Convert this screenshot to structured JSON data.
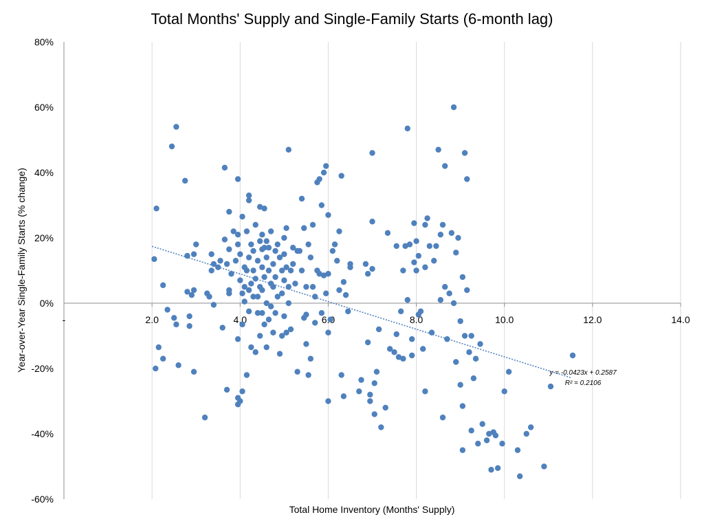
{
  "chart_data": {
    "type": "scatter",
    "title": "Total Months' Supply and Single-Family Starts (6-month lag)",
    "xlabel": "Total Home Inventory (Months' Supply)",
    "ylabel": "Year-over-Year Single-Family Starts (% change)",
    "xlim": [
      0,
      14
    ],
    "ylim": [
      -0.6,
      0.8
    ],
    "x_ticks": [
      {
        "value": 0,
        "label": "-"
      },
      {
        "value": 2,
        "label": "2.0"
      },
      {
        "value": 4,
        "label": "4.0"
      },
      {
        "value": 6,
        "label": "6.0"
      },
      {
        "value": 8,
        "label": "8.0"
      },
      {
        "value": 10,
        "label": "10.0"
      },
      {
        "value": 12,
        "label": "12.0"
      },
      {
        "value": 14,
        "label": "14.0"
      }
    ],
    "y_ticks": [
      {
        "value": 0.8,
        "label": "80%"
      },
      {
        "value": 0.6,
        "label": "60%"
      },
      {
        "value": 0.4,
        "label": "40%"
      },
      {
        "value": 0.2,
        "label": "20%"
      },
      {
        "value": 0,
        "label": "0%"
      },
      {
        "value": -0.2,
        "label": "-20%"
      },
      {
        "value": -0.4,
        "label": "-40%"
      },
      {
        "value": -0.6,
        "label": "-60%"
      }
    ],
    "grid": {
      "vertical": true,
      "horizontal": false
    },
    "legend": "none",
    "marker_color": "#4f81bd",
    "trendline": {
      "type": "linear",
      "slope": -0.0423,
      "intercept": 0.2587,
      "x_range": [
        2.0,
        11.5
      ],
      "equation_label": "y = -0.0423x + 0.2587",
      "r2_label": "R² = 0.2106",
      "color": "#4f81bd",
      "style": "dotted"
    },
    "points": [
      [
        2.1,
        0.29
      ],
      [
        2.05,
        0.135
      ],
      [
        2.08,
        -0.2
      ],
      [
        2.15,
        -0.135
      ],
      [
        2.25,
        0.055
      ],
      [
        2.25,
        -0.17
      ],
      [
        2.35,
        -0.02
      ],
      [
        2.45,
        0.48
      ],
      [
        2.5,
        -0.045
      ],
      [
        2.55,
        0.54
      ],
      [
        2.55,
        -0.065
      ],
      [
        2.6,
        -0.19
      ],
      [
        2.75,
        0.375
      ],
      [
        2.8,
        0.145
      ],
      [
        2.8,
        0.035
      ],
      [
        2.85,
        -0.04
      ],
      [
        2.85,
        -0.07
      ],
      [
        2.9,
        0.025
      ],
      [
        2.95,
        0.15
      ],
      [
        2.95,
        0.04
      ],
      [
        2.95,
        -0.21
      ],
      [
        3.0,
        0.18
      ],
      [
        3.25,
        0.03
      ],
      [
        3.3,
        0.02
      ],
      [
        3.35,
        0.15
      ],
      [
        3.35,
        0.1
      ],
      [
        3.4,
        0.12
      ],
      [
        3.4,
        -0.005
      ],
      [
        3.2,
        -0.35
      ],
      [
        3.5,
        0.11
      ],
      [
        3.55,
        0.13
      ],
      [
        3.6,
        -0.075
      ],
      [
        3.65,
        0.415
      ],
      [
        3.65,
        0.195
      ],
      [
        3.7,
        -0.265
      ],
      [
        3.7,
        0.12
      ],
      [
        3.75,
        0.03
      ],
      [
        3.75,
        0.28
      ],
      [
        3.75,
        0.165
      ],
      [
        3.75,
        0.04
      ],
      [
        3.8,
        0.09
      ],
      [
        3.85,
        0.22
      ],
      [
        3.9,
        0.13
      ],
      [
        3.95,
        0.38
      ],
      [
        3.95,
        0.21
      ],
      [
        3.95,
        0.18
      ],
      [
        3.95,
        -0.11
      ],
      [
        3.95,
        -0.29
      ],
      [
        3.95,
        -0.31
      ],
      [
        4.0,
        -0.3
      ],
      [
        4.0,
        0.07
      ],
      [
        4.0,
        0.15
      ],
      [
        4.05,
        0.265
      ],
      [
        4.05,
        0.03
      ],
      [
        4.05,
        -0.065
      ],
      [
        4.05,
        -0.27
      ],
      [
        4.1,
        0.05
      ],
      [
        4.1,
        0.11
      ],
      [
        4.1,
        0.005
      ],
      [
        4.15,
        0.22
      ],
      [
        4.15,
        0.1
      ],
      [
        4.15,
        -0.22
      ],
      [
        4.2,
        0.315
      ],
      [
        4.2,
        0.33
      ],
      [
        4.2,
        0.14
      ],
      [
        4.2,
        0.04
      ],
      [
        4.2,
        -0.025
      ],
      [
        4.25,
        0.18
      ],
      [
        4.25,
        0.06
      ],
      [
        4.25,
        -0.135
      ],
      [
        4.3,
        0.16
      ],
      [
        4.3,
        0.1
      ],
      [
        4.3,
        0.02
      ],
      [
        4.35,
        0.24
      ],
      [
        4.35,
        -0.15
      ],
      [
        4.35,
        0.075
      ],
      [
        4.4,
        0.13
      ],
      [
        4.4,
        0.02
      ],
      [
        4.4,
        -0.03
      ],
      [
        4.45,
        0.295
      ],
      [
        4.45,
        0.19
      ],
      [
        4.45,
        0.05
      ],
      [
        4.45,
        -0.1
      ],
      [
        4.5,
        0.21
      ],
      [
        4.5,
        0.165
      ],
      [
        4.5,
        0.11
      ],
      [
        4.5,
        0.04
      ],
      [
        4.5,
        -0.03
      ],
      [
        4.55,
        0.29
      ],
      [
        4.55,
        0.17
      ],
      [
        4.55,
        0.08
      ],
      [
        4.55,
        -0.065
      ],
      [
        4.6,
        0.19
      ],
      [
        4.6,
        0.14
      ],
      [
        4.6,
        0.0
      ],
      [
        4.6,
        -0.135
      ],
      [
        4.65,
        0.17
      ],
      [
        4.65,
        0.1
      ],
      [
        4.65,
        -0.05
      ],
      [
        4.7,
        0.22
      ],
      [
        4.7,
        0.06
      ],
      [
        4.7,
        -0.01
      ],
      [
        4.75,
        0.12
      ],
      [
        4.75,
        0.05
      ],
      [
        4.75,
        -0.09
      ],
      [
        4.8,
        0.16
      ],
      [
        4.8,
        0.08
      ],
      [
        4.8,
        -0.03
      ],
      [
        4.85,
        0.18
      ],
      [
        4.85,
        0.02
      ],
      [
        4.9,
        0.14
      ],
      [
        4.9,
        -0.155
      ],
      [
        4.95,
        0.1
      ],
      [
        4.95,
        0.03
      ],
      [
        4.95,
        -0.1
      ],
      [
        5.0,
        0.2
      ],
      [
        5.0,
        0.15
      ],
      [
        5.0,
        0.07
      ],
      [
        5.0,
        -0.04
      ],
      [
        5.05,
        0.23
      ],
      [
        5.05,
        0.11
      ],
      [
        5.05,
        -0.09
      ],
      [
        5.1,
        0.47
      ],
      [
        5.1,
        0.05
      ],
      [
        5.1,
        0.0
      ],
      [
        5.15,
        0.1
      ],
      [
        5.15,
        -0.08
      ],
      [
        5.2,
        0.17
      ],
      [
        5.2,
        0.12
      ],
      [
        5.25,
        0.06
      ],
      [
        5.3,
        0.16
      ],
      [
        5.3,
        -0.21
      ],
      [
        5.35,
        0.16
      ],
      [
        5.4,
        0.32
      ],
      [
        5.4,
        0.1
      ],
      [
        5.45,
        0.23
      ],
      [
        5.45,
        -0.045
      ],
      [
        5.5,
        0.05
      ],
      [
        5.5,
        -0.035
      ],
      [
        5.5,
        -0.125
      ],
      [
        5.55,
        0.18
      ],
      [
        5.55,
        -0.22
      ],
      [
        5.6,
        0.14
      ],
      [
        5.6,
        -0.17
      ],
      [
        5.65,
        0.24
      ],
      [
        5.65,
        0.05
      ],
      [
        5.7,
        0.02
      ],
      [
        5.7,
        -0.06
      ],
      [
        5.75,
        0.1
      ],
      [
        5.75,
        0.37
      ],
      [
        5.8,
        0.38
      ],
      [
        5.8,
        0.09
      ],
      [
        5.85,
        0.3
      ],
      [
        5.85,
        -0.03
      ],
      [
        5.9,
        0.4
      ],
      [
        5.9,
        0.085
      ],
      [
        5.95,
        0.42
      ],
      [
        5.95,
        0.03
      ],
      [
        6.0,
        0.27
      ],
      [
        6.0,
        0.09
      ],
      [
        6.0,
        -0.09
      ],
      [
        6.0,
        -0.3
      ],
      [
        6.05,
        -0.05
      ],
      [
        6.1,
        0.16
      ],
      [
        6.15,
        0.18
      ],
      [
        6.2,
        0.13
      ],
      [
        6.25,
        0.22
      ],
      [
        6.25,
        0.04
      ],
      [
        6.3,
        0.39
      ],
      [
        6.3,
        -0.22
      ],
      [
        6.35,
        0.065
      ],
      [
        6.35,
        -0.285
      ],
      [
        6.4,
        0.025
      ],
      [
        6.45,
        -0.025
      ],
      [
        6.5,
        0.11
      ],
      [
        6.5,
        0.12
      ],
      [
        6.7,
        -0.27
      ],
      [
        6.75,
        -0.235
      ],
      [
        6.85,
        0.12
      ],
      [
        6.9,
        0.09
      ],
      [
        6.9,
        -0.12
      ],
      [
        6.95,
        -0.3
      ],
      [
        6.95,
        -0.28
      ],
      [
        7.0,
        0.46
      ],
      [
        7.0,
        0.25
      ],
      [
        7.0,
        0.105
      ],
      [
        7.05,
        -0.245
      ],
      [
        7.05,
        -0.34
      ],
      [
        7.1,
        -0.21
      ],
      [
        7.15,
        -0.08
      ],
      [
        7.2,
        -0.38
      ],
      [
        7.3,
        -0.32
      ],
      [
        7.35,
        0.215
      ],
      [
        7.4,
        -0.14
      ],
      [
        7.5,
        -0.15
      ],
      [
        7.55,
        0.175
      ],
      [
        7.55,
        -0.095
      ],
      [
        7.6,
        -0.165
      ],
      [
        7.65,
        -0.025
      ],
      [
        7.7,
        -0.17
      ],
      [
        7.7,
        0.1
      ],
      [
        7.75,
        0.175
      ],
      [
        7.8,
        0.535
      ],
      [
        7.8,
        0.01
      ],
      [
        7.85,
        0.18
      ],
      [
        7.9,
        -0.16
      ],
      [
        7.9,
        -0.11
      ],
      [
        7.95,
        0.245
      ],
      [
        7.95,
        0.125
      ],
      [
        8.0,
        0.19
      ],
      [
        8.0,
        0.1
      ],
      [
        8.05,
        0.145
      ],
      [
        8.05,
        -0.035
      ],
      [
        8.1,
        -0.025
      ],
      [
        8.15,
        -0.14
      ],
      [
        8.2,
        0.24
      ],
      [
        8.2,
        0.11
      ],
      [
        8.2,
        -0.27
      ],
      [
        8.25,
        0.26
      ],
      [
        8.3,
        0.175
      ],
      [
        8.35,
        -0.09
      ],
      [
        8.4,
        0.13
      ],
      [
        8.45,
        0.175
      ],
      [
        8.5,
        0.47
      ],
      [
        8.55,
        0.21
      ],
      [
        8.55,
        0.01
      ],
      [
        8.6,
        0.24
      ],
      [
        8.6,
        -0.35
      ],
      [
        8.65,
        0.42
      ],
      [
        8.65,
        0.05
      ],
      [
        8.7,
        -0.11
      ],
      [
        8.75,
        0.03
      ],
      [
        8.8,
        0.215
      ],
      [
        8.85,
        0.6
      ],
      [
        8.85,
        0.0
      ],
      [
        8.9,
        0.155
      ],
      [
        8.9,
        -0.18
      ],
      [
        8.95,
        0.2
      ],
      [
        9.0,
        -0.055
      ],
      [
        9.0,
        -0.25
      ],
      [
        9.05,
        0.08
      ],
      [
        9.05,
        -0.315
      ],
      [
        9.05,
        -0.45
      ],
      [
        9.1,
        0.46
      ],
      [
        9.1,
        -0.1
      ],
      [
        9.15,
        0.38
      ],
      [
        9.15,
        0.04
      ],
      [
        9.2,
        -0.15
      ],
      [
        9.25,
        -0.39
      ],
      [
        9.25,
        -0.1
      ],
      [
        9.3,
        -0.23
      ],
      [
        9.35,
        -0.17
      ],
      [
        9.4,
        -0.43
      ],
      [
        9.45,
        -0.125
      ],
      [
        9.5,
        -0.37
      ],
      [
        9.6,
        -0.42
      ],
      [
        9.65,
        -0.4
      ],
      [
        9.7,
        -0.51
      ],
      [
        9.75,
        -0.395
      ],
      [
        9.8,
        -0.405
      ],
      [
        9.85,
        -0.505
      ],
      [
        9.95,
        -0.43
      ],
      [
        10.0,
        -0.27
      ],
      [
        10.1,
        -0.21
      ],
      [
        10.3,
        -0.45
      ],
      [
        10.35,
        -0.53
      ],
      [
        10.5,
        -0.4
      ],
      [
        10.6,
        -0.38
      ],
      [
        10.9,
        -0.5
      ],
      [
        11.05,
        -0.255
      ],
      [
        11.55,
        -0.16
      ]
    ]
  }
}
